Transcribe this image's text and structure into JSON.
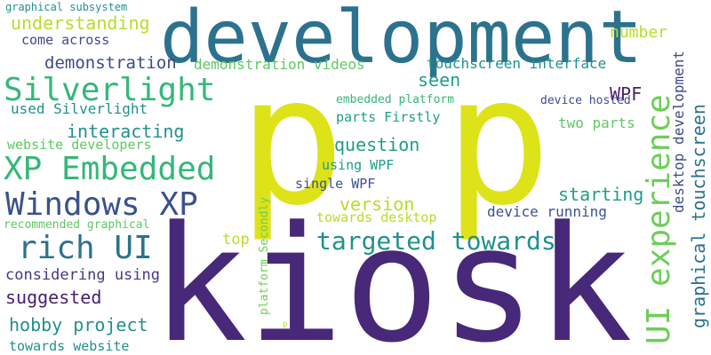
{
  "words": [
    {
      "text": "kiosk",
      "color": "#482878"
    },
    {
      "text": "p",
      "color": "#dde318"
    },
    {
      "text": "p",
      "color": "#dde318"
    },
    {
      "text": "development",
      "color": "#2c728e"
    },
    {
      "text": "XP Embedded",
      "color": "#35b779"
    },
    {
      "text": "Windows XP",
      "color": "#3b528b"
    },
    {
      "text": "Silverlight",
      "color": "#35b779"
    },
    {
      "text": "rich UI",
      "color": "#2c728e"
    },
    {
      "text": "UI experience",
      "color": "#6ece58"
    },
    {
      "text": "targeted towards",
      "color": "#21918c"
    },
    {
      "text": "graphical touchscreen",
      "color": "#2c728e"
    },
    {
      "text": "desktop development",
      "color": "#3e4a89"
    },
    {
      "text": "understanding",
      "color": "#b5de2b"
    },
    {
      "text": "demonstration",
      "color": "#3e4a89"
    },
    {
      "text": "demonstration videos",
      "color": "#5ec962"
    },
    {
      "text": "touchscreen interface",
      "color": "#21918c"
    },
    {
      "text": "interacting",
      "color": "#21918c"
    },
    {
      "text": "question",
      "color": "#1f9e89"
    },
    {
      "text": "starting",
      "color": "#1f9e89"
    },
    {
      "text": "version",
      "color": "#b5de2b"
    },
    {
      "text": "suggested",
      "color": "#481f70"
    },
    {
      "text": "hobby project",
      "color": "#21918c"
    },
    {
      "text": "considering using",
      "color": "#443983"
    },
    {
      "text": "WPF",
      "color": "#481f70"
    },
    {
      "text": "number",
      "color": "#b5de2b"
    },
    {
      "text": "seen",
      "color": "#1f9e89"
    },
    {
      "text": "come across",
      "color": "#3e4a89"
    },
    {
      "text": "used Silverlight",
      "color": "#21918c"
    },
    {
      "text": "website developers",
      "color": "#5ec962"
    },
    {
      "text": "parts Firstly",
      "color": "#1f9e89"
    },
    {
      "text": "two parts",
      "color": "#5ec962"
    },
    {
      "text": "device hosted",
      "color": "#3e4a89"
    },
    {
      "text": "using WPF",
      "color": "#1f9e89"
    },
    {
      "text": "single WPF",
      "color": "#3b528b"
    },
    {
      "text": "towards desktop",
      "color": "#b5de2b"
    },
    {
      "text": "device running",
      "color": "#3b528b"
    },
    {
      "text": "embedded platform",
      "color": "#35b779"
    },
    {
      "text": "top",
      "color": "#b5de2b"
    },
    {
      "text": "recommended graphical",
      "color": "#5ec962"
    },
    {
      "text": "towards website",
      "color": "#21918c"
    },
    {
      "text": "platform Secondly",
      "color": "#6ece58"
    },
    {
      "text": "graphical subsystem",
      "color": "#21918c"
    },
    {
      "text": "p",
      "color": "#b5de2b"
    }
  ]
}
